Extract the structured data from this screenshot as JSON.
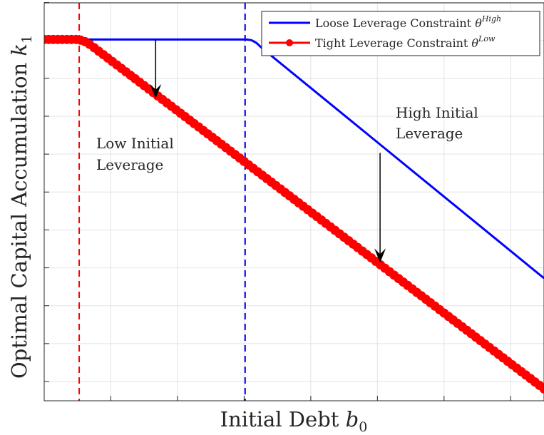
{
  "chart_data": {
    "type": "line",
    "xlabel": "Initial Debt",
    "xlabel_sub": "0",
    "xlabel_var": "b",
    "ylabel": "Optimal Capital Accumulation",
    "ylabel_var": "k",
    "ylabel_sub": "1",
    "xlim": [
      0,
      100
    ],
    "ylim": [
      0,
      100
    ],
    "grid": true,
    "tick_labels_visible": false,
    "legend_position": "top-right",
    "series": [
      {
        "name": "Loose Leverage Constraint",
        "symbol_base": "θ",
        "symbol_sup": "High",
        "color": "#0000ff",
        "marker": "none",
        "points": [
          [
            0,
            90.8
          ],
          [
            40.5,
            90.8
          ],
          [
            41.5,
            90.6
          ],
          [
            42.5,
            89.9
          ],
          [
            43.5,
            88.7
          ],
          [
            100,
            30.8
          ]
        ]
      },
      {
        "name": "Tight Leverage Constraint",
        "symbol_base": "θ",
        "symbol_sup": "Low",
        "color": "#ff0000",
        "marker": "circle",
        "points": [
          [
            0,
            90.8
          ],
          [
            6.4,
            90.8
          ],
          [
            7.5,
            90.6
          ],
          [
            8.5,
            90.1
          ],
          [
            9.5,
            89.2
          ],
          [
            100,
            3.0
          ]
        ]
      }
    ],
    "vlines": [
      {
        "x": 7.0,
        "color": "#ff0000",
        "style": "dashed"
      },
      {
        "x": 40.2,
        "color": "#0000ff",
        "style": "dashed"
      }
    ],
    "annotations": [
      {
        "lines": [
          "Low Initial",
          "Leverage"
        ]
      },
      {
        "lines": [
          "High Initial",
          "Leverage"
        ]
      }
    ],
    "arrows": [
      {
        "x": 22.3,
        "y_from": 90.8,
        "y_to": 76.0
      },
      {
        "x": 67.2,
        "y_from": 62.3,
        "y_to": 34.7
      }
    ]
  }
}
